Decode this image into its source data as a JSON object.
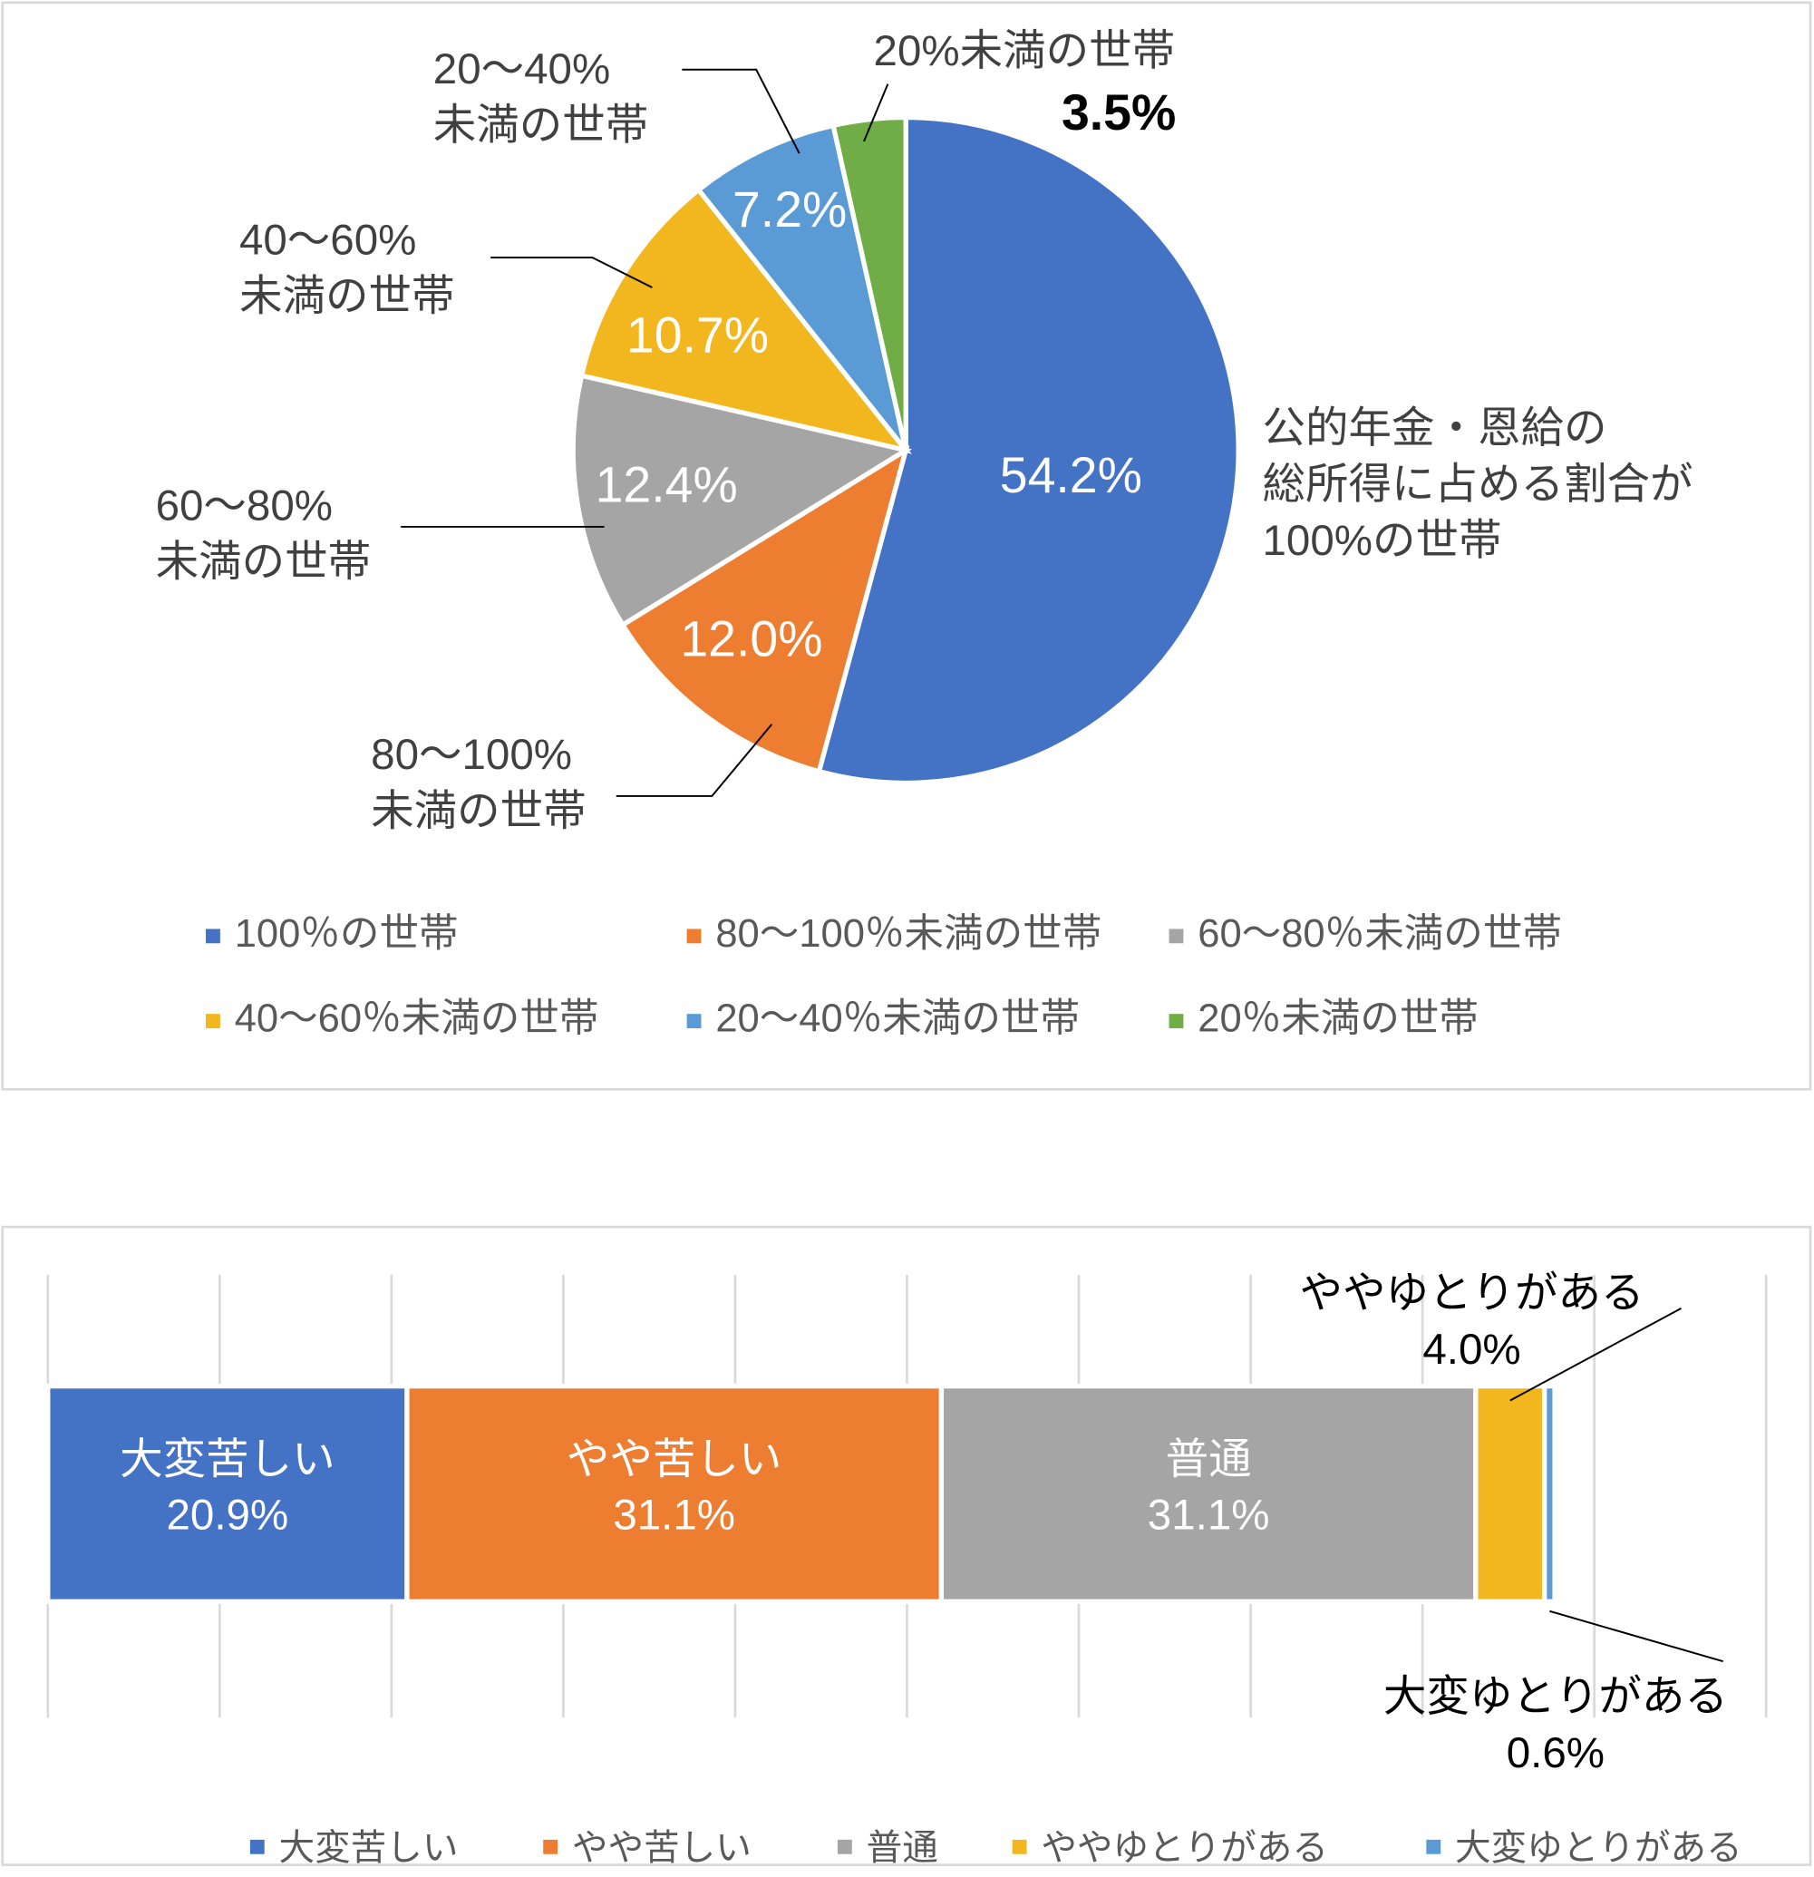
{
  "chart_data": [
    {
      "type": "pie",
      "categories": [
        "100％の世帯",
        "80〜100％未満の世帯",
        "60〜80％未満の世帯",
        "40〜60％未満の世帯",
        "20〜40％未満の世帯",
        "20％未満の世帯"
      ],
      "values": [
        54.2,
        12.0,
        12.4,
        10.7,
        7.2,
        3.5
      ],
      "value_labels": [
        "54.2%",
        "12.0%",
        "12.4%",
        "10.7%",
        "7.2%",
        "3.5%"
      ],
      "colors": [
        "#4472c4",
        "#ed7d31",
        "#a5a5a5",
        "#f2b71f",
        "#5b9bd5",
        "#70ad47"
      ],
      "callouts": [
        [
          "公的年金・恩給の",
          "総所得に占める割合が",
          "100%の世帯"
        ],
        [
          "80〜100%",
          "未満の世帯"
        ],
        [
          "60〜80%",
          "未満の世帯"
        ],
        [
          "40〜60%",
          "未満の世帯"
        ],
        [
          "20〜40%",
          "未満の世帯"
        ],
        [
          "20%未満の世帯"
        ]
      ],
      "legend": "bottom"
    },
    {
      "type": "bar",
      "orientation": "horizontal",
      "stacked": true,
      "series": [
        {
          "name": "大変苦しい",
          "color": "#4472c4",
          "values": [
            20.9
          ],
          "value_labels": [
            "20.9%"
          ]
        },
        {
          "name": "やや苦しい",
          "color": "#ed7d31",
          "values": [
            31.1
          ],
          "value_labels": [
            "31.1%"
          ]
        },
        {
          "name": "普通",
          "color": "#a5a5a5",
          "values": [
            31.1
          ],
          "value_labels": [
            "31.1%"
          ]
        },
        {
          "name": "ややゆとりがある",
          "color": "#f2b71f",
          "values": [
            4.0
          ],
          "value_labels": [
            "4.0%"
          ]
        },
        {
          "name": "大変ゆとりがある",
          "color": "#5b9bd5",
          "values": [
            0.6
          ],
          "value_labels": [
            "0.6%"
          ]
        }
      ],
      "xlim": [
        0,
        100
      ],
      "xticks": [
        0,
        10,
        20,
        30,
        40,
        50,
        60,
        70,
        80,
        90,
        100
      ],
      "grid": true,
      "legend": "bottom"
    }
  ]
}
